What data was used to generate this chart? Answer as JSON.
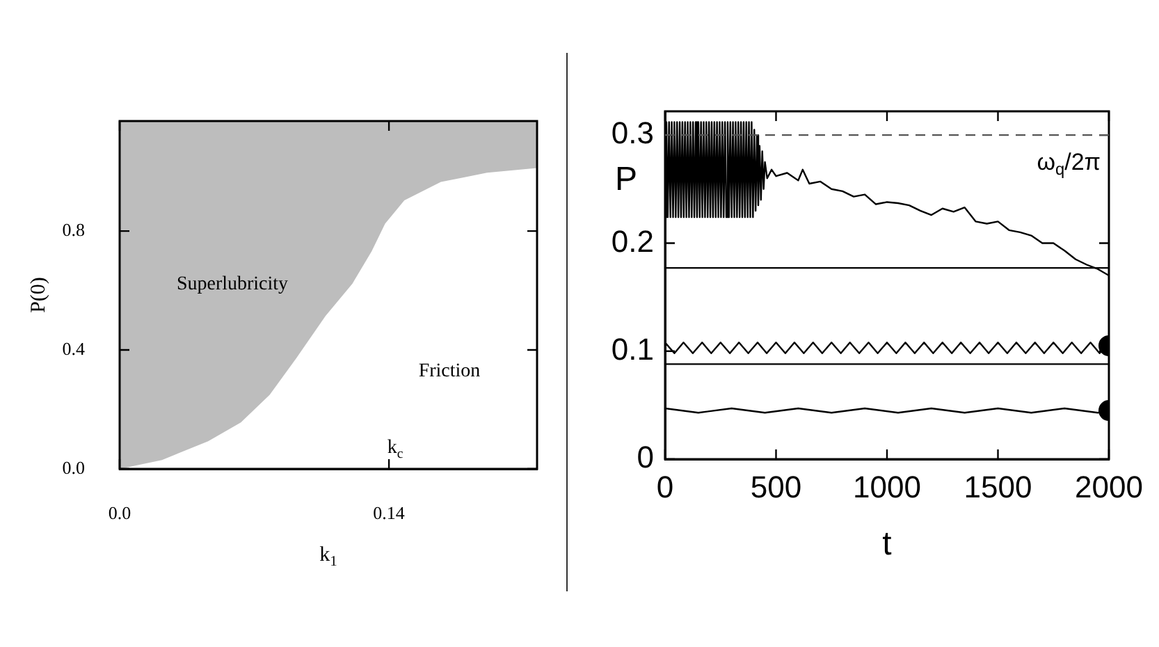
{
  "chart_data": [
    {
      "type": "area",
      "xlabel": "k$_{1}$",
      "ylabel": "P(0)",
      "xlim": [
        0,
        0.217
      ],
      "ylim": [
        0,
        1.17
      ],
      "xticks": [
        {
          "value": 0,
          "label": "0.0"
        },
        0.14
      ],
      "yticks": [
        {
          "value": 0,
          "label": "0.0"
        },
        0.4,
        0.8
      ],
      "x": [
        0,
        0.022,
        0.046,
        0.063,
        0.078,
        0.092,
        0.107,
        0.121,
        0.131,
        0.138,
        0.148,
        0.167,
        0.191,
        0.217
      ],
      "series": [
        {
          "color": "#ffffff",
          "values": [
            0,
            0.03,
            0.093,
            0.156,
            0.249,
            0.374,
            0.514,
            0.623,
            0.732,
            0.825,
            0.903,
            0.965,
            0.996,
            1.012
          ]
        }
      ],
      "annotations": [
        "Superlubricity",
        "Friction",
        "k$_{c}$"
      ]
    },
    {
      "type": "line",
      "xlabel": "t",
      "ylabel": "P",
      "xlim": [
        0,
        2000
      ],
      "ylim": [
        0,
        0.322
      ],
      "xticks": [
        0,
        500,
        1000,
        1500,
        2000
      ],
      "yticks": [
        0,
        0.1,
        0.2,
        0.3
      ],
      "ref_lines": [
        {
          "axis": "y",
          "value": 0.3,
          "label": "ω$_{q}$/2π",
          "line_style": "dashed",
          "color": "#555555"
        }
      ],
      "series": [
        {
          "color": "#000000",
          "x": [
            0,
            6,
            12,
            18,
            24,
            30,
            36,
            42,
            48,
            54,
            60,
            66,
            72,
            78,
            84,
            90,
            96,
            102,
            108,
            114,
            120,
            126,
            132,
            138,
            144,
            150,
            156,
            162,
            168,
            174,
            180,
            186,
            192,
            198,
            204,
            210,
            216,
            222,
            228,
            234,
            240,
            246,
            252,
            258,
            264,
            270,
            276,
            282,
            288,
            294,
            300,
            306,
            312,
            318,
            324,
            330,
            336,
            342,
            348,
            354,
            360,
            366,
            372,
            378,
            384,
            390,
            396,
            402,
            408,
            414,
            420,
            426,
            432,
            438,
            444,
            450,
            460,
            480,
            500,
            550,
            600,
            620,
            650,
            700,
            750,
            800,
            850,
            900,
            950,
            1000,
            1050,
            1100,
            1150,
            1200,
            1250,
            1300,
            1350,
            1400,
            1450,
            1500,
            1550,
            1600,
            1650,
            1700,
            1750,
            1800,
            1850,
            1900,
            1950,
            2000
          ],
          "values": [
            0.224,
            0.312,
            0.224,
            0.312,
            0.224,
            0.312,
            0.224,
            0.312,
            0.224,
            0.312,
            0.224,
            0.312,
            0.224,
            0.312,
            0.224,
            0.312,
            0.224,
            0.312,
            0.224,
            0.312,
            0.224,
            0.312,
            0.224,
            0.312,
            0.224,
            0.312,
            0.224,
            0.312,
            0.224,
            0.312,
            0.224,
            0.312,
            0.224,
            0.312,
            0.224,
            0.312,
            0.224,
            0.312,
            0.224,
            0.312,
            0.224,
            0.312,
            0.224,
            0.312,
            0.224,
            0.312,
            0.224,
            0.312,
            0.224,
            0.312,
            0.224,
            0.312,
            0.224,
            0.312,
            0.224,
            0.312,
            0.224,
            0.312,
            0.224,
            0.312,
            0.224,
            0.312,
            0.224,
            0.312,
            0.224,
            0.312,
            0.224,
            0.305,
            0.23,
            0.3,
            0.235,
            0.29,
            0.24,
            0.285,
            0.25,
            0.275,
            0.26,
            0.268,
            0.262,
            0.265,
            0.258,
            0.268,
            0.255,
            0.257,
            0.25,
            0.248,
            0.243,
            0.245,
            0.236,
            0.238,
            0.237,
            0.235,
            0.23,
            0.226,
            0.232,
            0.229,
            0.233,
            0.22,
            0.218,
            0.22,
            0.212,
            0.21,
            0.207,
            0.2,
            0.2,
            0.193,
            0.185,
            0.18,
            0.176,
            0.17
          ]
        },
        {
          "color": "#000000",
          "x": [
            0,
            2000
          ],
          "values": [
            0.177,
            0.177
          ]
        },
        {
          "color": "#000000",
          "x": [
            0,
            42,
            83,
            125,
            167,
            208,
            250,
            292,
            333,
            375,
            417,
            458,
            500,
            542,
            583,
            625,
            667,
            708,
            750,
            792,
            833,
            875,
            917,
            958,
            1000,
            1042,
            1083,
            1125,
            1167,
            1208,
            1250,
            1292,
            1333,
            1375,
            1417,
            1458,
            1500,
            1542,
            1583,
            1625,
            1667,
            1708,
            1750,
            1792,
            1833,
            1875,
            1917,
            1958,
            2000
          ],
          "values": [
            0.108,
            0.098,
            0.108,
            0.098,
            0.108,
            0.098,
            0.108,
            0.098,
            0.108,
            0.098,
            0.108,
            0.098,
            0.108,
            0.098,
            0.108,
            0.098,
            0.108,
            0.098,
            0.108,
            0.098,
            0.108,
            0.098,
            0.108,
            0.098,
            0.108,
            0.098,
            0.108,
            0.098,
            0.108,
            0.098,
            0.108,
            0.098,
            0.108,
            0.098,
            0.108,
            0.098,
            0.108,
            0.098,
            0.108,
            0.098,
            0.108,
            0.098,
            0.108,
            0.098,
            0.108,
            0.098,
            0.108,
            0.098,
            0.108
          ]
        },
        {
          "color": "#000000",
          "x": [
            0,
            2000
          ],
          "values": [
            0.088,
            0.088
          ]
        },
        {
          "color": "#000000",
          "x": [
            0,
            150,
            300,
            450,
            600,
            750,
            900,
            1050,
            1200,
            1350,
            1500,
            1650,
            1800,
            1950,
            2000
          ],
          "values": [
            0.047,
            0.043,
            0.047,
            0.043,
            0.047,
            0.043,
            0.047,
            0.043,
            0.047,
            0.043,
            0.047,
            0.043,
            0.047,
            0.043,
            0.045
          ]
        },
        {
          "type": "scatter",
          "marker": "circle",
          "color": "#000000",
          "x": [
            2000,
            2000
          ],
          "values": [
            0.105,
            0.045
          ]
        }
      ]
    }
  ]
}
